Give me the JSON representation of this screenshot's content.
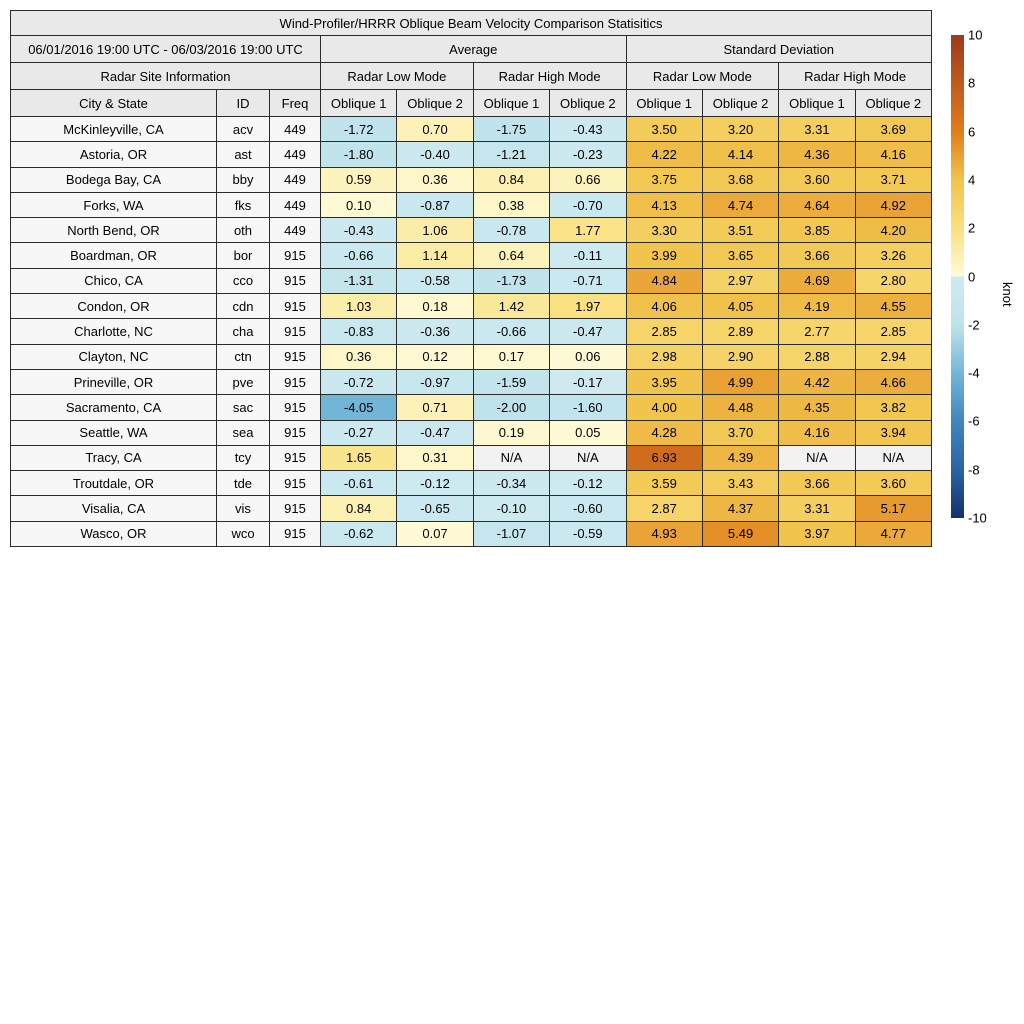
{
  "chart_data": {
    "type": "heatmap",
    "title": "Wind-Profiler/HRRR Oblique Beam Velocity Comparison Statisitics",
    "date_range": "06/01/2016 19:00 UTC - 06/03/2016 19:00 UTC",
    "group_headers": {
      "average": "Average",
      "std": "Standard Deviation"
    },
    "site_info_header": "Radar Site Information",
    "mode_headers": {
      "low": "Radar Low Mode",
      "high": "Radar High Mode"
    },
    "column_headers": {
      "city": "City & State",
      "id": "ID",
      "freq": "Freq",
      "oblique1": "Oblique 1",
      "oblique2": "Oblique 2"
    },
    "value_columns": [
      "Average Radar Low Mode Oblique 1",
      "Average Radar Low Mode Oblique 2",
      "Average Radar High Mode Oblique 1",
      "Average Radar High Mode Oblique 2",
      "Standard Deviation Radar Low Mode Oblique 1",
      "Standard Deviation Radar Low Mode Oblique 2",
      "Standard Deviation Radar High Mode Oblique 1",
      "Standard Deviation Radar High Mode Oblique 2"
    ],
    "na_text": "N/A",
    "rows": [
      {
        "city": "McKinleyville, CA",
        "id": "acv",
        "freq": "449",
        "values": [
          -1.72,
          0.7,
          -1.75,
          -0.43,
          3.5,
          3.2,
          3.31,
          3.69
        ]
      },
      {
        "city": "Astoria, OR",
        "id": "ast",
        "freq": "449",
        "values": [
          -1.8,
          -0.4,
          -1.21,
          -0.23,
          4.22,
          4.14,
          4.36,
          4.16
        ]
      },
      {
        "city": "Bodega Bay, CA",
        "id": "bby",
        "freq": "449",
        "values": [
          0.59,
          0.36,
          0.84,
          0.66,
          3.75,
          3.68,
          3.6,
          3.71
        ]
      },
      {
        "city": "Forks, WA",
        "id": "fks",
        "freq": "449",
        "values": [
          0.1,
          -0.87,
          0.38,
          -0.7,
          4.13,
          4.74,
          4.64,
          4.92
        ]
      },
      {
        "city": "North Bend, OR",
        "id": "oth",
        "freq": "449",
        "values": [
          -0.43,
          1.06,
          -0.78,
          1.77,
          3.3,
          3.51,
          3.85,
          4.2
        ]
      },
      {
        "city": "Boardman, OR",
        "id": "bor",
        "freq": "915",
        "values": [
          -0.66,
          1.14,
          0.64,
          -0.11,
          3.99,
          3.65,
          3.66,
          3.26
        ]
      },
      {
        "city": "Chico, CA",
        "id": "cco",
        "freq": "915",
        "values": [
          -1.31,
          -0.58,
          -1.73,
          -0.71,
          4.84,
          2.97,
          4.69,
          2.8
        ]
      },
      {
        "city": "Condon, OR",
        "id": "cdn",
        "freq": "915",
        "values": [
          1.03,
          0.18,
          1.42,
          1.97,
          4.06,
          4.05,
          4.19,
          4.55
        ]
      },
      {
        "city": "Charlotte, NC",
        "id": "cha",
        "freq": "915",
        "values": [
          -0.83,
          -0.36,
          -0.66,
          -0.47,
          2.85,
          2.89,
          2.77,
          2.85
        ]
      },
      {
        "city": "Clayton, NC",
        "id": "ctn",
        "freq": "915",
        "values": [
          0.36,
          0.12,
          0.17,
          0.06,
          2.98,
          2.9,
          2.88,
          2.94
        ]
      },
      {
        "city": "Prineville, OR",
        "id": "pve",
        "freq": "915",
        "values": [
          -0.72,
          -0.97,
          -1.59,
          -0.17,
          3.95,
          4.99,
          4.42,
          4.66
        ]
      },
      {
        "city": "Sacramento, CA",
        "id": "sac",
        "freq": "915",
        "values": [
          -4.05,
          0.71,
          -2.0,
          -1.6,
          4.0,
          4.48,
          4.35,
          3.82
        ]
      },
      {
        "city": "Seattle, WA",
        "id": "sea",
        "freq": "915",
        "values": [
          -0.27,
          -0.47,
          0.19,
          0.05,
          4.28,
          3.7,
          4.16,
          3.94
        ]
      },
      {
        "city": "Tracy, CA",
        "id": "tcy",
        "freq": "915",
        "values": [
          1.65,
          0.31,
          null,
          null,
          6.93,
          4.39,
          null,
          null
        ]
      },
      {
        "city": "Troutdale, OR",
        "id": "tde",
        "freq": "915",
        "values": [
          -0.61,
          -0.12,
          -0.34,
          -0.12,
          3.59,
          3.43,
          3.66,
          3.6
        ]
      },
      {
        "city": "Visalia, CA",
        "id": "vis",
        "freq": "915",
        "values": [
          0.84,
          -0.65,
          -0.1,
          -0.6,
          2.87,
          4.37,
          3.31,
          5.17
        ]
      },
      {
        "city": "Wasco, OR",
        "id": "wco",
        "freq": "915",
        "values": [
          -0.62,
          0.07,
          -1.07,
          -0.59,
          4.93,
          5.49,
          3.97,
          4.77
        ]
      }
    ],
    "colorbar": {
      "label": "knot",
      "vmin": -10,
      "vmax": 10,
      "ticks": [
        10,
        8,
        6,
        4,
        2,
        0,
        -2,
        -4,
        -6,
        -8,
        -10
      ],
      "color_stops": [
        {
          "v": 10,
          "c": "#9C3A1E"
        },
        {
          "v": 8,
          "c": "#BE5B1D"
        },
        {
          "v": 6,
          "c": "#E07D1C"
        },
        {
          "v": 4,
          "c": "#F1C44C"
        },
        {
          "v": 2,
          "c": "#F9E07F"
        },
        {
          "v": 0.001,
          "c": "#FEFBD8"
        },
        {
          "v": -0.001,
          "c": "#CFEAF1"
        },
        {
          "v": -2,
          "c": "#BFE3EB"
        },
        {
          "v": -4,
          "c": "#74B6D8"
        },
        {
          "v": -6,
          "c": "#4086BD"
        },
        {
          "v": -8,
          "c": "#2A64A5"
        },
        {
          "v": -10,
          "c": "#16306B"
        }
      ]
    },
    "colors": {
      "header_bg": "#E9E9E9",
      "info_bg": "#F7F7F7",
      "na_bg": "#F2F2F2",
      "grid_line": "#2B2B2B",
      "text": "#000000"
    }
  }
}
